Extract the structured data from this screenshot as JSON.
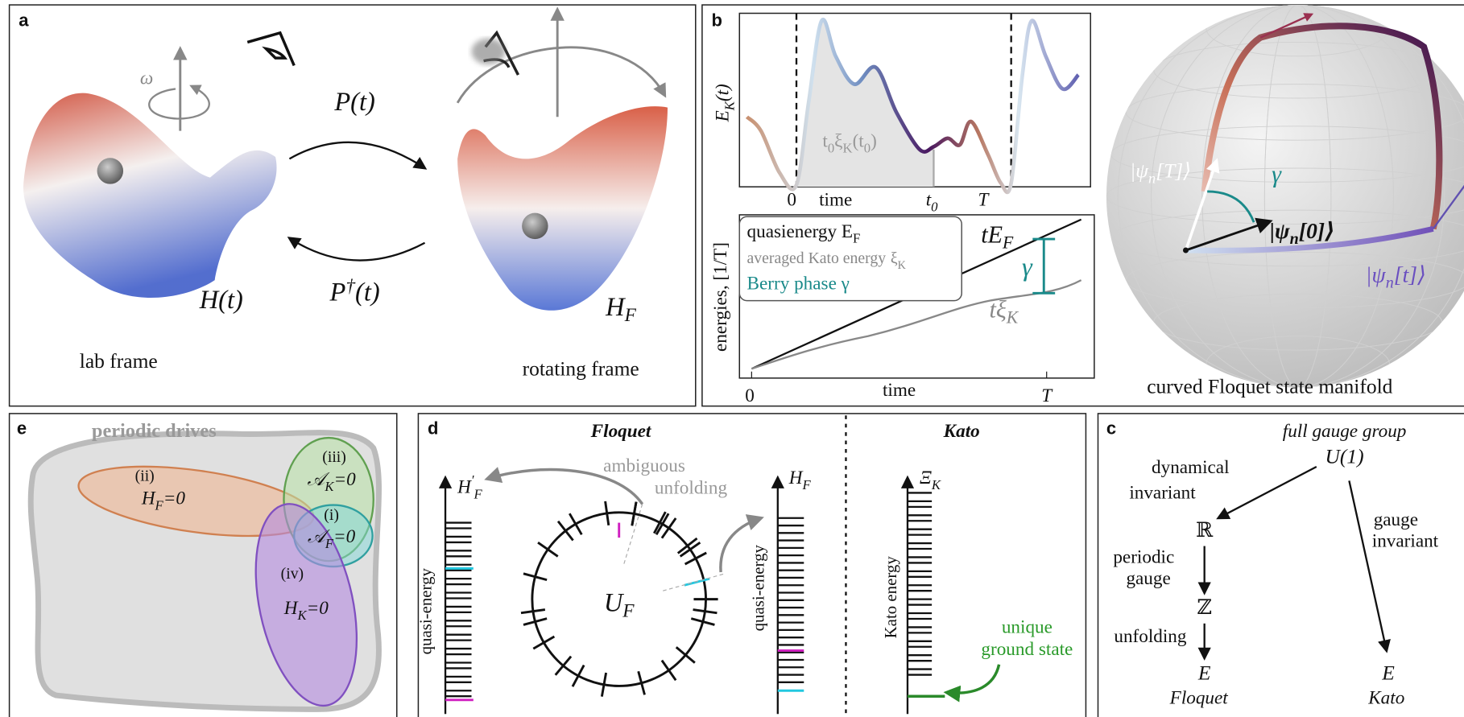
{
  "panel_a": {
    "label": "a",
    "omega": "ω",
    "forward": "P(t)",
    "backward": [
      "P",
      {
        "sup": "†"
      },
      "(t)"
    ],
    "lab_hamiltonian": "H(t)",
    "floquet_hamiltonian": [
      "H",
      {
        "sub": "F"
      }
    ],
    "lab_frame": "lab frame",
    "rotating_frame": "rotating frame"
  },
  "panel_b": {
    "label": "b",
    "top_plot": {
      "y_label": [
        "E",
        {
          "sub": "K"
        },
        "(t)"
      ],
      "shaded_label": [
        "t",
        {
          "sub": "0"
        },
        "ξ",
        {
          "sub": "K"
        },
        "(t",
        {
          "sub": "0"
        },
        ")"
      ],
      "x_tick_labels": [
        "0",
        "time",
        [
          "t",
          {
            "sub": "0"
          }
        ],
        "T"
      ]
    },
    "bottom_plot": {
      "y_label": "energies, [1/T]",
      "legend": [
        [
          "quasienergy",
          "E",
          {
            "sub": "F"
          }
        ],
        [
          "averaged Kato energy",
          "ξ",
          {
            "sub": "K"
          }
        ],
        "Berry phase γ"
      ],
      "line_label": [
        "tE",
        {
          "sub": "F"
        }
      ],
      "gap_label": "γ",
      "curve_label": [
        "tξ",
        {
          "sub": "K"
        }
      ],
      "x_tick_labels": [
        "0",
        "time",
        "T"
      ]
    },
    "sphere": {
      "state_T": [
        "|ψ",
        {
          "sub": "n"
        },
        "[T]⟩"
      ],
      "angle": "γ",
      "state_0": [
        "|ψ",
        {
          "sub": "n"
        },
        "[0]⟩"
      ],
      "state_t": [
        "|ψ",
        {
          "sub": "n"
        },
        "[t]⟩"
      ],
      "caption": "curved Floquet state manifold"
    }
  },
  "panel_e": {
    "label": "e",
    "title": "periodic drives",
    "regions": [
      {
        "tag": "(ii)",
        "condition": [
          "H",
          {
            "sub": "F"
          },
          "=0"
        ]
      },
      {
        "tag": "(iii)",
        "condition": [
          "𝒜",
          {
            "sub": "K"
          },
          "=0"
        ]
      },
      {
        "tag": "(i)",
        "condition": [
          "𝒜",
          {
            "sub": "F"
          },
          "=0"
        ]
      },
      {
        "tag": "(iv)",
        "condition": [
          "H",
          {
            "sub": "K"
          },
          "=0"
        ]
      }
    ]
  },
  "panel_d": {
    "label": "d",
    "floquet_title": "Floquet",
    "kato_title": "Kato",
    "unfolded_axis": [
      "H",
      {
        "sup": "′"
      },
      {
        "sub": "F"
      }
    ],
    "ambiguous": [
      "ambiguous",
      "unfolding"
    ],
    "floquet_axis": [
      "H",
      {
        "sub": "F"
      }
    ],
    "quasi_energy_labels": [
      "quasi-energy",
      "quasi-energy"
    ],
    "operator": [
      "U",
      {
        "sub": "F"
      }
    ],
    "kato_axis": [
      "Ξ",
      {
        "sub": "K"
      }
    ],
    "kato_axis_label": "Kato energy",
    "ground_state": [
      "unique",
      "ground state"
    ]
  },
  "panel_c": {
    "label": "c",
    "top": "full gauge group",
    "group": "U(1)",
    "left_edge": [
      "dynamical",
      "invariant"
    ],
    "reals": "ℝ",
    "step1": [
      "periodic",
      "gauge"
    ],
    "integers": "ℤ",
    "step2": "unfolding",
    "floquet_energy": "E",
    "floquet_name": "Floquet",
    "right_edge": [
      "gauge",
      "invariant"
    ],
    "kato_energy": "E",
    "kato_name": "Kato"
  }
}
